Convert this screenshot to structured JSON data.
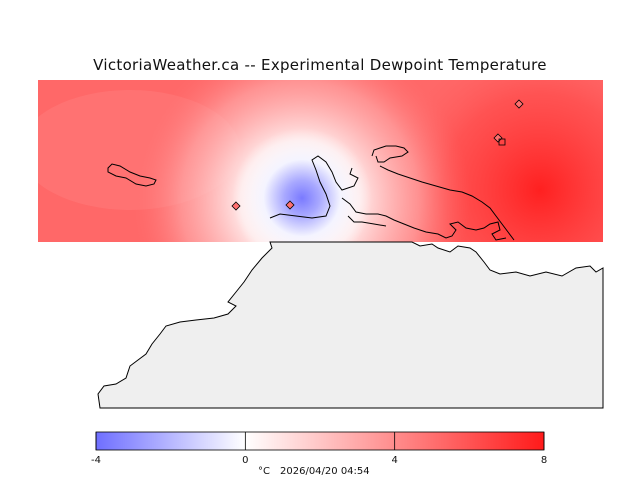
{
  "title": "VictoriaWeather.ca -- Experimental Dewpoint Temperature",
  "colorbar": {
    "min": -4,
    "max": 8,
    "ticks": [
      "-4",
      "0",
      "4",
      "8"
    ],
    "unit": "°C",
    "timestamp": "2026/04/20 04:54",
    "cold_color": "#6f6fff",
    "zero_color": "#ffffff",
    "warm_color": "#ff1a1a"
  },
  "field": {
    "stations": [
      {
        "id": "west",
        "value": 5.6
      },
      {
        "id": "victoria",
        "value": -1.8
      },
      {
        "id": "northeast-1",
        "value": 5.7
      },
      {
        "id": "northeast-2",
        "value": 6.0
      }
    ]
  }
}
